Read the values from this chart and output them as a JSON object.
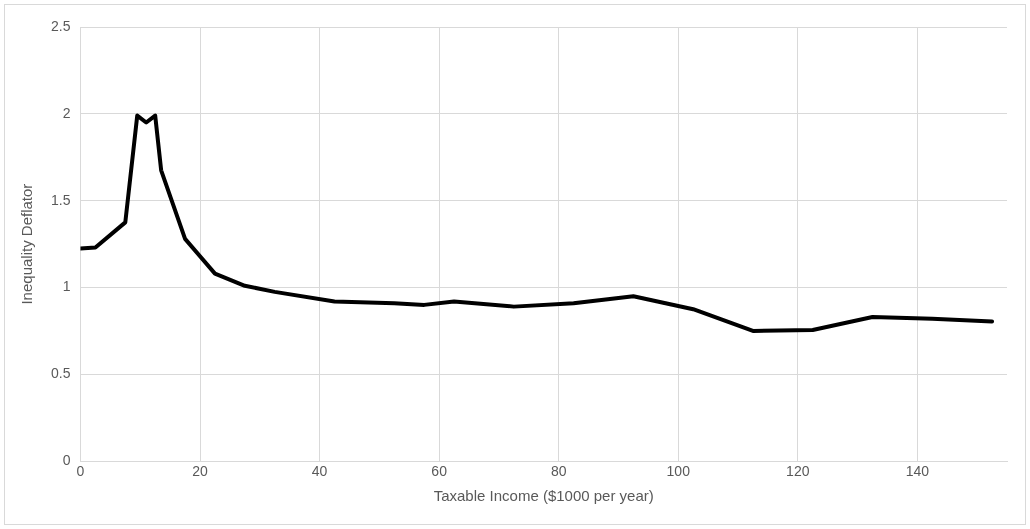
{
  "chart_data": {
    "type": "line",
    "xlabel": "Taxable Income ($1000 per year)",
    "ylabel": "Inequality Deflator",
    "x": [
      0,
      2.5,
      7.5,
      9.5,
      11,
      12.5,
      13.5,
      17.5,
      22.5,
      27.5,
      32.5,
      42.5,
      52.5,
      57.5,
      62.5,
      72.5,
      82.5,
      92.5,
      102.5,
      112.5,
      122.5,
      132.5,
      142.5,
      152.5
    ],
    "series": [
      {
        "color": "#000000",
        "values": [
          1.225,
          1.23,
          1.375,
          1.99,
          1.95,
          1.99,
          1.675,
          1.28,
          1.08,
          1.01,
          0.975,
          0.92,
          0.91,
          0.9,
          0.92,
          0.89,
          0.91,
          0.95,
          0.875,
          0.75,
          0.755,
          0.83,
          0.82,
          0.805
        ]
      }
    ],
    "xlim": [
      0,
      155
    ],
    "xticks": [
      0,
      20,
      40,
      60,
      80,
      100,
      120,
      140
    ],
    "ylim": [
      0,
      2.5
    ],
    "yticks": [
      0,
      0.5,
      1,
      1.5,
      2,
      2.5
    ],
    "grid": true,
    "legend": false,
    "marker": "none",
    "line_style": "solid"
  }
}
